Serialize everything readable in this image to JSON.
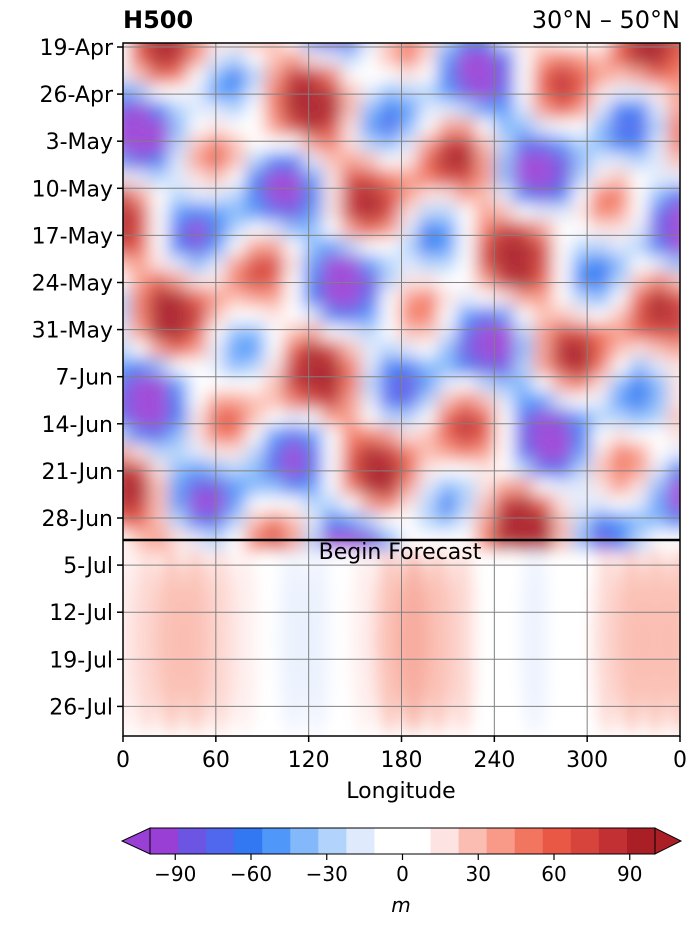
{
  "chart_data": {
    "type": "heatmap",
    "title_left": "H500",
    "title_right": "30°N – 50°N",
    "xlabel": "Longitude",
    "x_ticks": [
      "0",
      "60",
      "120",
      "180",
      "240",
      "300",
      "0"
    ],
    "x_tick_values": [
      0,
      60,
      120,
      180,
      240,
      300,
      360
    ],
    "xlim": [
      0,
      360
    ],
    "y_ticks": [
      "19-Apr",
      "26-Apr",
      "3-May",
      "10-May",
      "17-May",
      "24-May",
      "31-May",
      "7-Jun",
      "14-Jun",
      "21-Jun",
      "28-Jun",
      "5-Jul",
      "12-Jul",
      "19-Jul",
      "26-Jul"
    ],
    "y_axis_inverted": true,
    "forecast_line_date": "1-Jul",
    "forecast_label": "Begin Forecast",
    "grid": true,
    "colorbar": {
      "label": "m",
      "ticks": [
        "−90",
        "−60",
        "−30",
        "0",
        "30",
        "60",
        "90"
      ],
      "tick_values": [
        -90,
        -60,
        -30,
        0,
        30,
        60,
        90
      ],
      "vmin": -100,
      "vmax": 100,
      "colors": [
        "#9a3fd6",
        "#6b55e2",
        "#4f68ee",
        "#3278f2",
        "#4f98fa",
        "#83b8fb",
        "#b2d3fb",
        "#dfeafd",
        "#ffffff",
        "#ffffff",
        "#fde3e1",
        "#fbbdb2",
        "#f89a87",
        "#f2765f",
        "#e85844",
        "#d6443b",
        "#c33034",
        "#aa1f26"
      ]
    }
  }
}
